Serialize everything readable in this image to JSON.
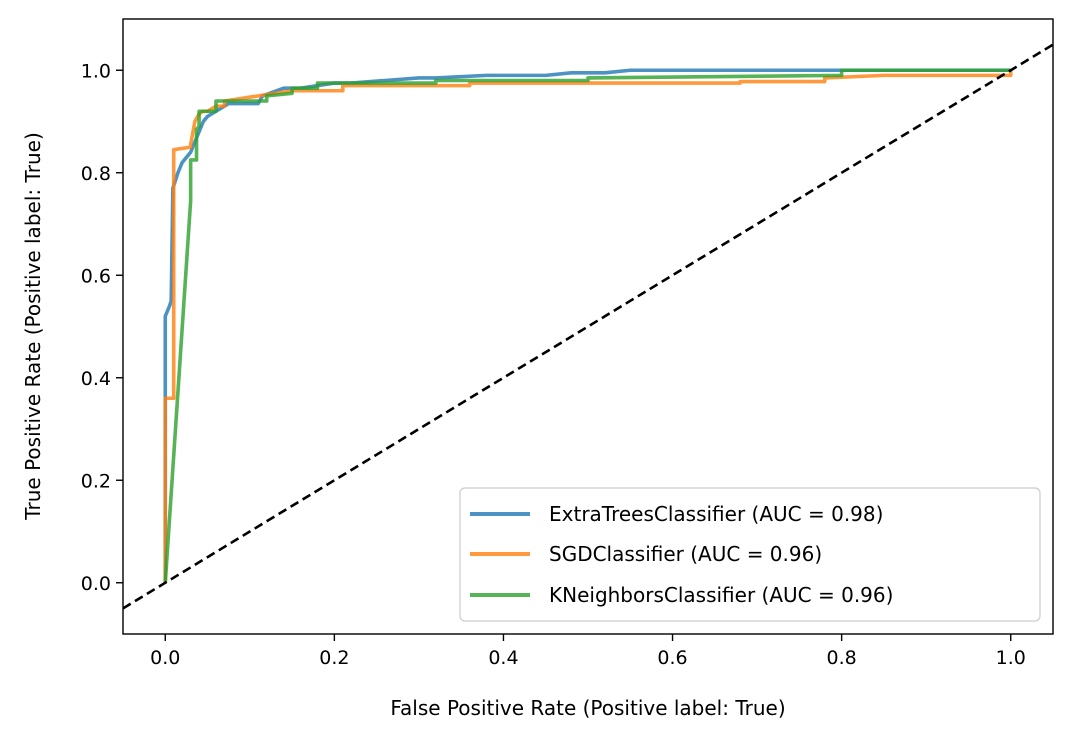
{
  "chart_data": {
    "type": "line",
    "title": "",
    "xlabel": "False Positive Rate (Positive label: True)",
    "ylabel": "True Positive Rate (Positive label: True)",
    "xlim": [
      -0.05,
      1.05
    ],
    "ylim": [
      -0.1,
      1.1
    ],
    "xticks": [
      "0.0",
      "0.2",
      "0.4",
      "0.6",
      "0.8",
      "1.0"
    ],
    "yticks": [
      "0.0",
      "0.2",
      "0.4",
      "0.6",
      "0.8",
      "1.0"
    ],
    "grid": false,
    "legend_position": "lower-right",
    "series": [
      {
        "name": "ExtraTreesClassifier (AUC = 0.98)",
        "color": "#1f77b4",
        "x": [
          0,
          0,
          0,
          0.005,
          0.007,
          0.009,
          0.015,
          0.02,
          0.03,
          0.04,
          0.045,
          0.05,
          0.06,
          0.075,
          0.095,
          0.11,
          0.115,
          0.14,
          0.16,
          0.18,
          0.2,
          0.22,
          0.26,
          0.3,
          0.32,
          0.38,
          0.45,
          0.48,
          0.52,
          0.55,
          0.6,
          0.7,
          0.8,
          0.9,
          1.0
        ],
        "y": [
          0,
          0.36,
          0.52,
          0.54,
          0.55,
          0.77,
          0.8,
          0.82,
          0.84,
          0.88,
          0.9,
          0.91,
          0.92,
          0.935,
          0.935,
          0.935,
          0.95,
          0.965,
          0.965,
          0.97,
          0.975,
          0.975,
          0.98,
          0.985,
          0.985,
          0.99,
          0.99,
          0.995,
          0.995,
          1.0,
          1.0,
          1.0,
          1.0,
          1.0,
          1.0
        ]
      },
      {
        "name": "SGDClassifier (AUC = 0.96)",
        "color": "#ff7f0e",
        "x": [
          0,
          0,
          0,
          0.005,
          0.01,
          0.01,
          0.01,
          0.03,
          0.03,
          0.035,
          0.04,
          0.045,
          0.05,
          0.06,
          0.07,
          0.07,
          0.13,
          0.15,
          0.17,
          0.21,
          0.21,
          0.36,
          0.36,
          0.62,
          0.68,
          0.68,
          0.77,
          0.78,
          0.78,
          0.85,
          1.0,
          1.0
        ],
        "y": [
          0,
          0.2,
          0.36,
          0.36,
          0.36,
          0.75,
          0.845,
          0.85,
          0.855,
          0.9,
          0.915,
          0.92,
          0.92,
          0.93,
          0.93,
          0.94,
          0.955,
          0.96,
          0.96,
          0.96,
          0.97,
          0.97,
          0.975,
          0.975,
          0.975,
          0.978,
          0.978,
          0.978,
          0.985,
          0.99,
          0.99,
          1.0
        ]
      },
      {
        "name": "KNeighborsClassifier (AUC = 0.96)",
        "color": "#2ca02c",
        "x": [
          0,
          0.03,
          0.03,
          0.037,
          0.037,
          0.04,
          0.04,
          0.06,
          0.06,
          0.12,
          0.12,
          0.15,
          0.15,
          0.18,
          0.18,
          0.2,
          0.32,
          0.32,
          0.5,
          0.5,
          0.8,
          0.8,
          1.0
        ],
        "y": [
          0,
          0.745,
          0.825,
          0.825,
          0.885,
          0.89,
          0.92,
          0.92,
          0.94,
          0.94,
          0.95,
          0.955,
          0.965,
          0.965,
          0.975,
          0.975,
          0.975,
          0.98,
          0.98,
          0.985,
          0.99,
          1.0,
          1.0
        ]
      },
      {
        "name": "",
        "color": "#000000",
        "dashed": true,
        "x": [
          -0.05,
          1.05
        ],
        "y": [
          -0.05,
          1.05
        ]
      }
    ]
  }
}
